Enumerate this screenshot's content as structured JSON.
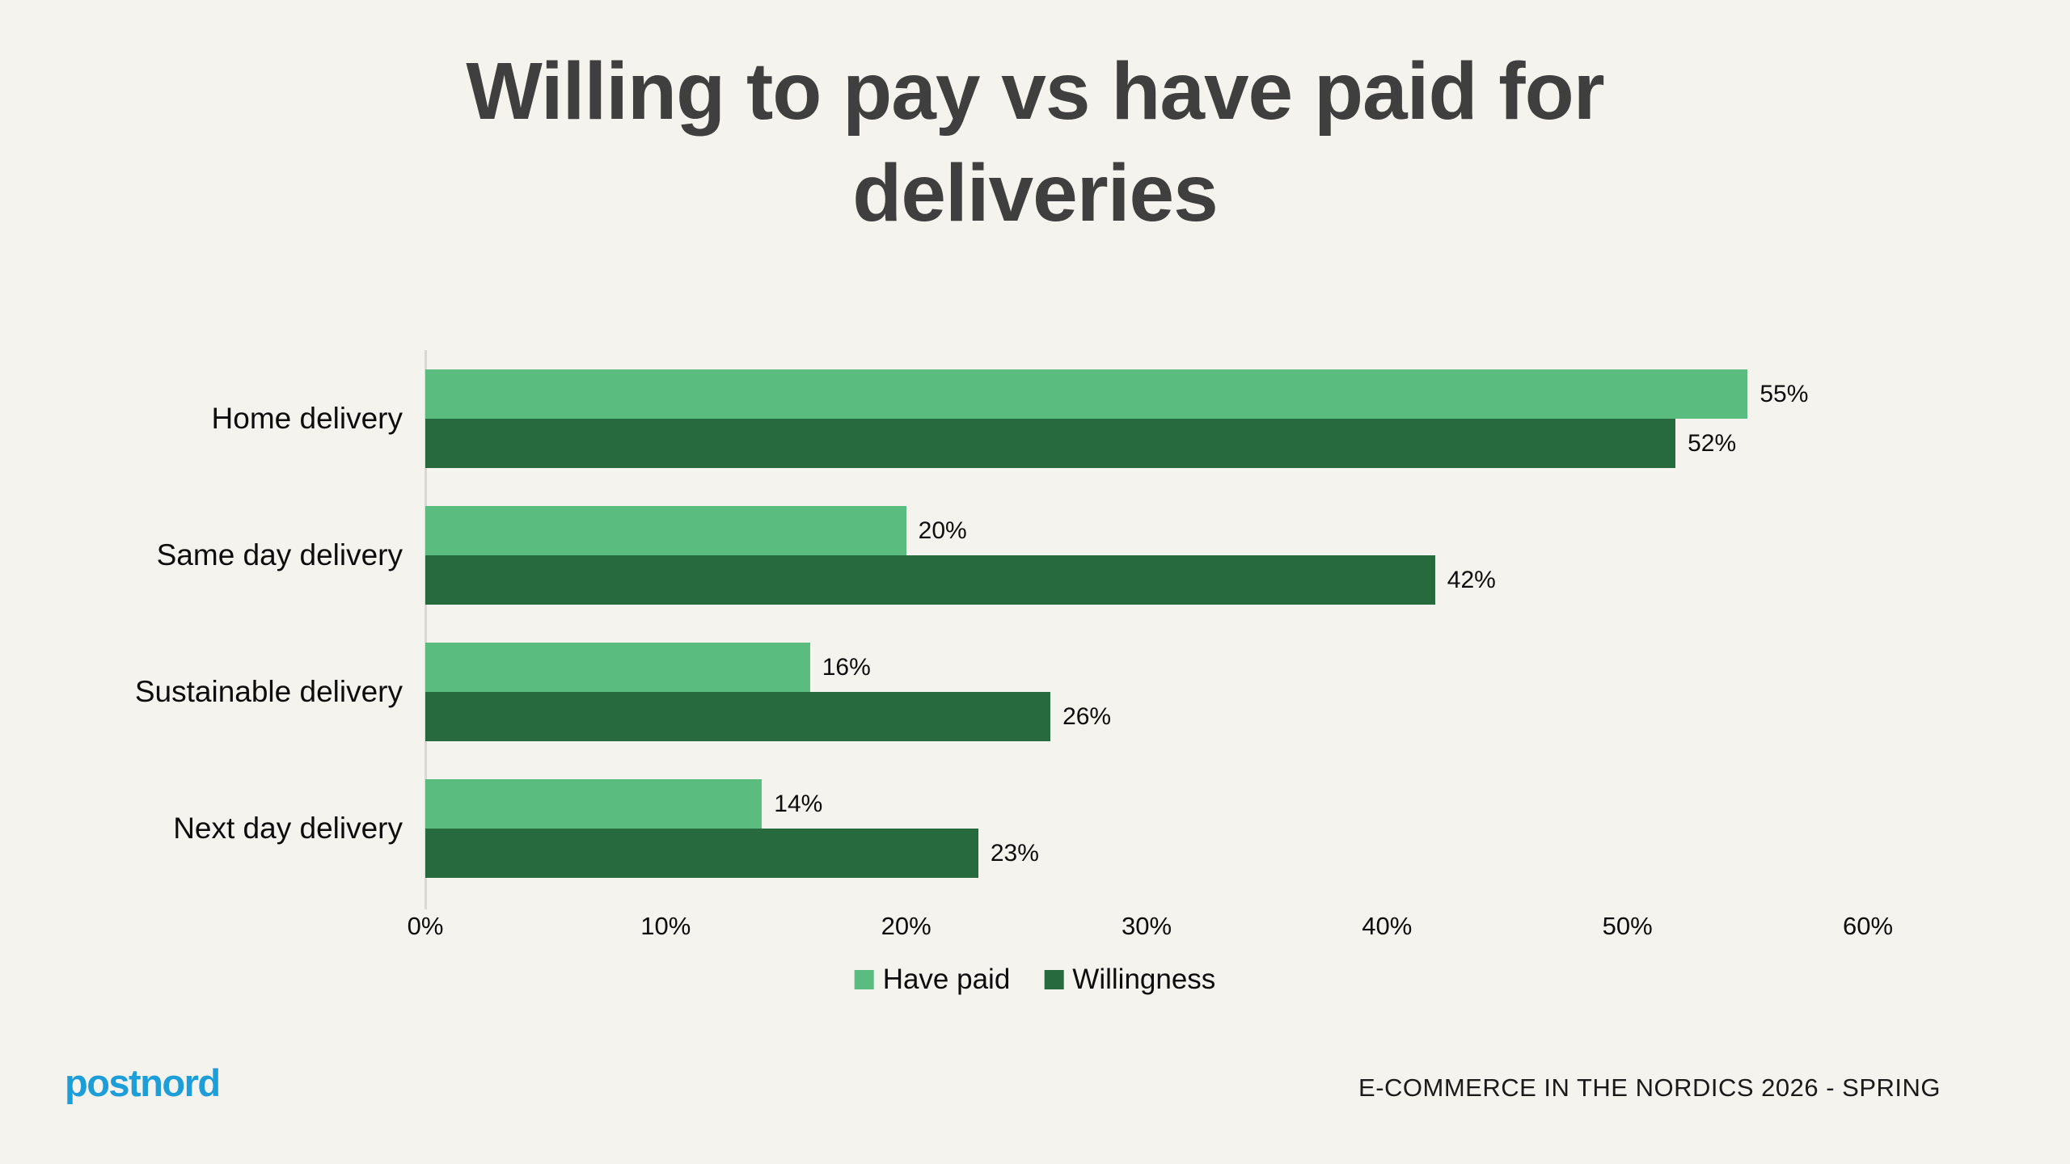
{
  "page": {
    "background": "#F5F3EE"
  },
  "header": {
    "title_lines": [
      "Willing to pay vs have paid for",
      "deliveries"
    ]
  },
  "chart_data": {
    "type": "bar",
    "orientation": "horizontal",
    "title": "Willing to pay vs have paid for deliveries",
    "categories": [
      "Home delivery",
      "Same day delivery",
      "Sustainable delivery",
      "Next day delivery"
    ],
    "series": [
      {
        "name": "Have paid",
        "color": "#5ABD7F",
        "values": [
          55,
          20,
          16,
          14
        ],
        "labels": [
          "55%",
          "20%",
          "16%",
          "14%"
        ]
      },
      {
        "name": "Willingness",
        "color": "#276A3D",
        "values": [
          52,
          42,
          26,
          23
        ],
        "labels": [
          "52%",
          "42%",
          "26%",
          "23%"
        ]
      }
    ],
    "xlabel": "",
    "ylabel": "",
    "xlim": [
      0,
      60
    ],
    "xticks": [
      "0%",
      "10%",
      "20%",
      "30%",
      "40%",
      "50%",
      "60%"
    ],
    "grid": false,
    "legend_position": "bottom",
    "axis_line_color": "#DBD8D1"
  },
  "footer": {
    "logo_text": "postnord",
    "logo_color": "#1E9ED9",
    "source_text": "E-COMMERCE IN THE NORDICS 2026 - SPRING"
  }
}
